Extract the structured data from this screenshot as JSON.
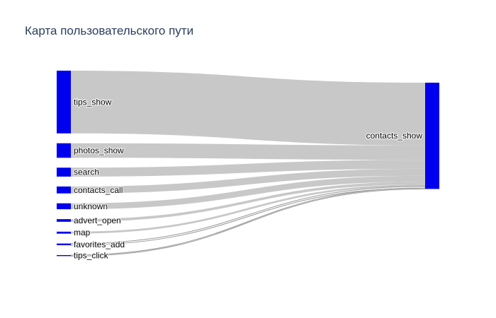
{
  "chart_data": {
    "type": "sankey",
    "title": "Карта пользовательского пути",
    "sources": [
      {
        "name": "tips_show",
        "value": 1900
      },
      {
        "name": "photos_show",
        "value": 440
      },
      {
        "name": "search",
        "value": 270
      },
      {
        "name": "contacts_call",
        "value": 210
      },
      {
        "name": "unknown",
        "value": 180
      },
      {
        "name": "advert_open",
        "value": 80
      },
      {
        "name": "map",
        "value": 60
      },
      {
        "name": "favorites_add",
        "value": 50
      },
      {
        "name": "tips_click",
        "value": 30
      }
    ],
    "target": {
      "name": "contacts_show"
    },
    "colors": {
      "node": "#0000ee",
      "link": "#c8c8c8",
      "link_thin": "#999999"
    }
  }
}
